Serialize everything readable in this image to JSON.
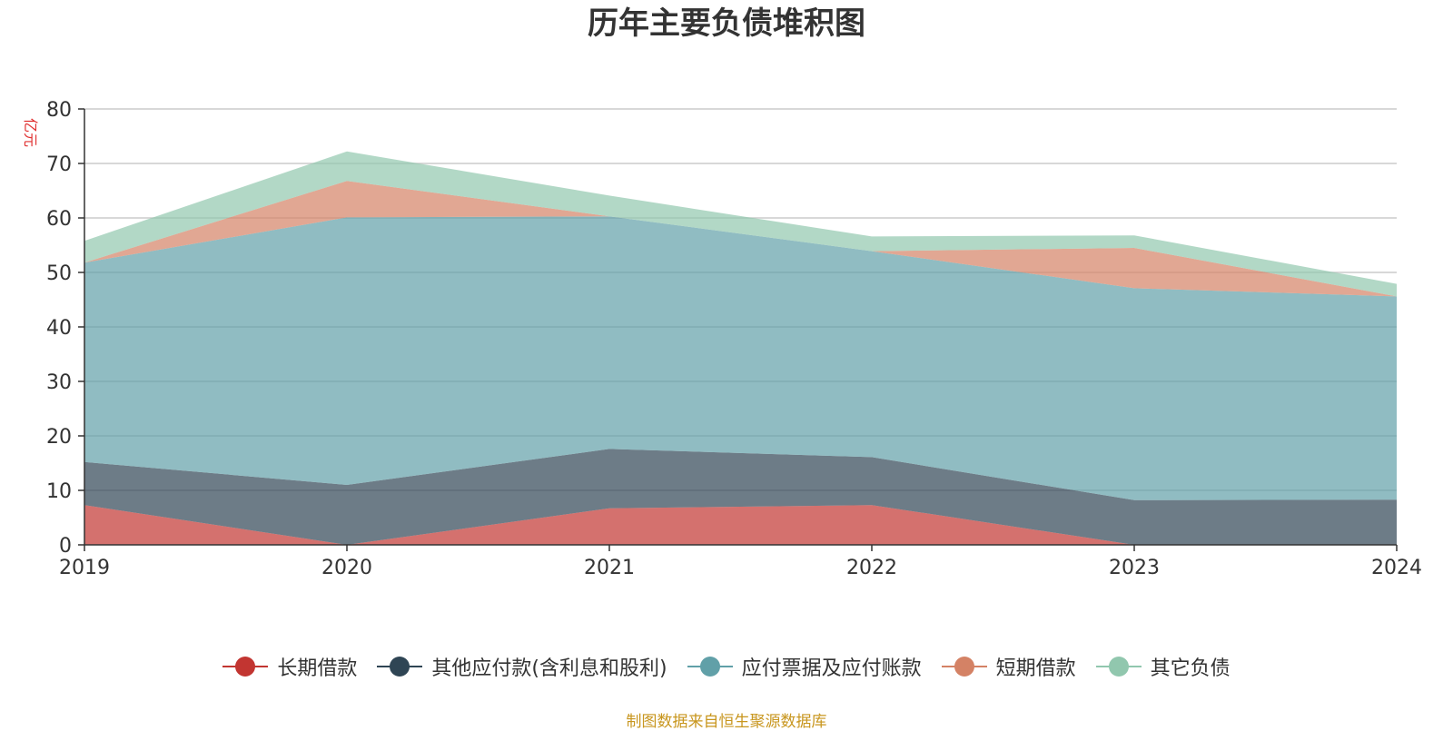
{
  "chart_data": {
    "type": "area",
    "stacked": true,
    "title": "历年主要负债堆积图",
    "ylabel": "亿元",
    "xlabel": "",
    "x": [
      "2019",
      "2020",
      "2021",
      "2022",
      "2023",
      "2024"
    ],
    "ylim": [
      0,
      80
    ],
    "yticks": [
      0,
      10,
      20,
      30,
      40,
      50,
      60,
      70,
      80
    ],
    "grid": true,
    "legend_position": "bottom",
    "series": [
      {
        "name": "长期借款",
        "color": "#c23531",
        "values": [
          7.3,
          0.0,
          6.7,
          7.3,
          0.0,
          0.0
        ]
      },
      {
        "name": "其他应付款(含利息和股利)",
        "color": "#2f4554",
        "values": [
          7.9,
          11.0,
          10.9,
          8.8,
          8.2,
          8.3
        ]
      },
      {
        "name": "应付票据及应付账款",
        "color": "#61a0a8",
        "values": [
          36.6,
          49.1,
          42.7,
          37.8,
          38.9,
          37.3
        ]
      },
      {
        "name": "短期借款",
        "color": "#d48265",
        "values": [
          0.0,
          6.7,
          0.0,
          0.0,
          7.4,
          0.0
        ]
      },
      {
        "name": "其它负债",
        "color": "#91c7ae",
        "values": [
          4.0,
          5.4,
          3.8,
          2.7,
          2.3,
          2.3
        ]
      }
    ]
  },
  "source_note": "制图数据来自恒生聚源数据库"
}
